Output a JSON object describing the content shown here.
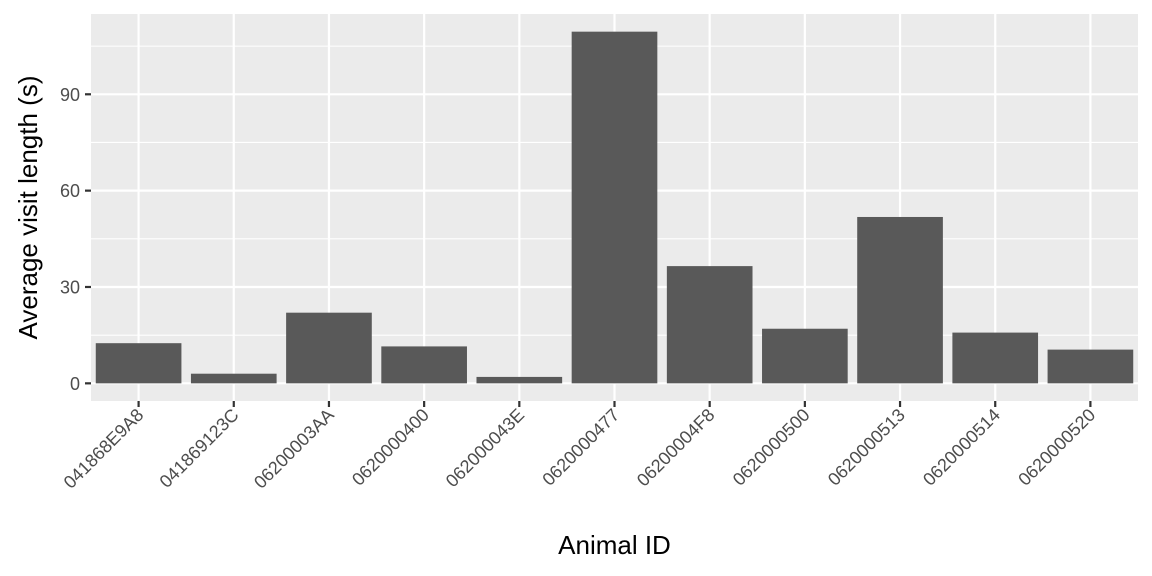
{
  "chart_data": {
    "type": "bar",
    "title": "",
    "xlabel": "Animal ID",
    "ylabel": "Average visit length (s)",
    "categories": [
      "041868E9A8",
      "041869123C",
      "06200003AA",
      "0620000400",
      "062000043E",
      "0620000477",
      "06200004F8",
      "0620000500",
      "0620000513",
      "0620000514",
      "0620000520"
    ],
    "values": [
      12.5,
      3.0,
      22.0,
      11.5,
      2.0,
      109.5,
      36.5,
      17.0,
      51.8,
      15.8,
      10.5
    ],
    "ylim": [
      -5.5,
      115.0
    ],
    "yticks": [
      0,
      30,
      60,
      90
    ],
    "grid": true,
    "colors": {
      "bar": "#595959",
      "panel": "#ebebeb",
      "grid": "#ffffff",
      "tick_text": "#4d4d4d",
      "title_text": "#000000"
    }
  }
}
